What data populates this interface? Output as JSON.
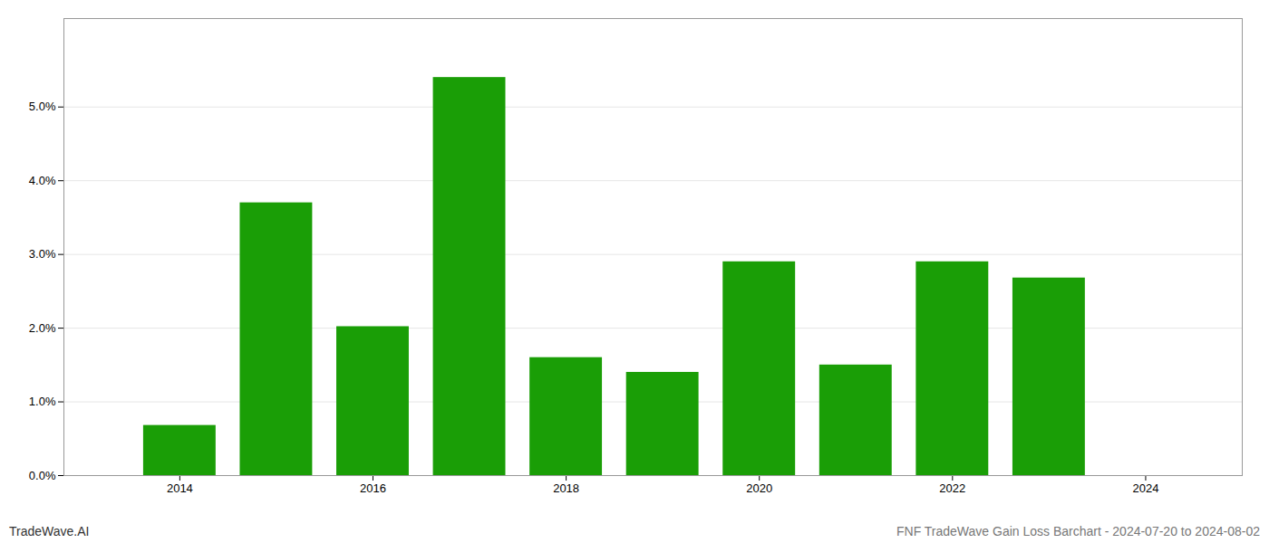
{
  "chart_data": {
    "type": "bar",
    "title": "FNF TradeWave Gain Loss Barchart - 2024-07-20 to 2024-08-02",
    "annotations": [
      "TradeWave.AI"
    ],
    "x": [
      2014,
      2015,
      2016,
      2017,
      2018,
      2019,
      2020,
      2021,
      2022,
      2023
    ],
    "values": [
      0.0068,
      0.037,
      0.0202,
      0.054,
      0.016,
      0.014,
      0.029,
      0.015,
      0.029,
      0.0268
    ],
    "color": "#1a9e06",
    "xlim": [
      2012.8,
      2025.0
    ],
    "xticks": [
      2014,
      2016,
      2018,
      2020,
      2022,
      2024
    ],
    "ylim": [
      0,
      0.062
    ],
    "yticks": [
      {
        "value": 0.0,
        "label": "0.0%"
      },
      {
        "value": 0.01,
        "label": "1.0%"
      },
      {
        "value": 0.02,
        "label": "2.0%"
      },
      {
        "value": 0.03,
        "label": "3.0%"
      },
      {
        "value": 0.04,
        "label": "4.0%"
      },
      {
        "value": 0.05,
        "label": "5.0%"
      }
    ],
    "grid": true
  }
}
